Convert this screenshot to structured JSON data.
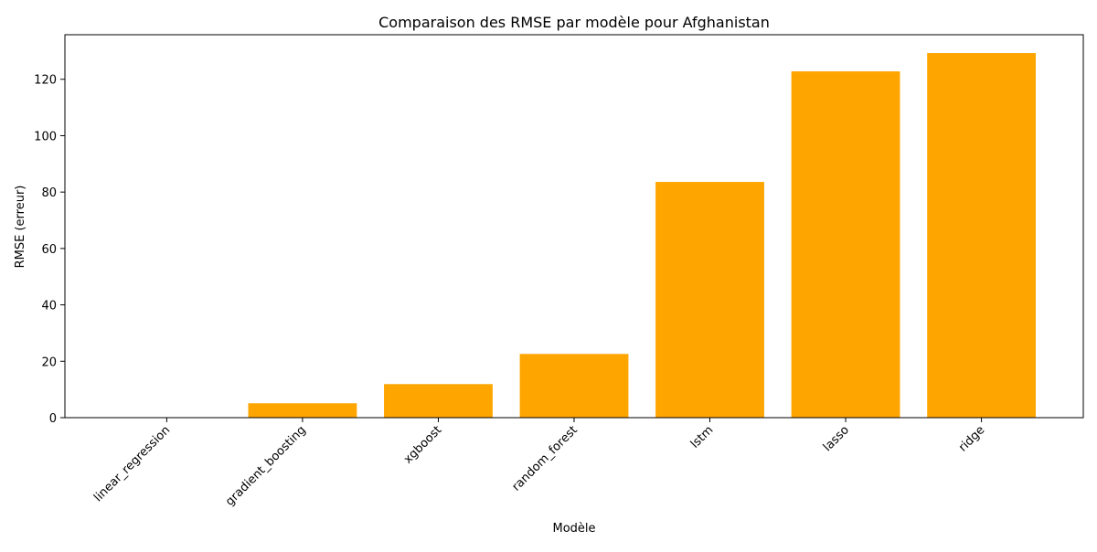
{
  "chart_data": {
    "type": "bar",
    "title": "Comparaison des RMSE par modèle pour Afghanistan",
    "xlabel": "Modèle",
    "ylabel": "RMSE (erreur)",
    "categories": [
      "linear_regression",
      "gradient_boosting",
      "xgboost",
      "random_forest",
      "lstm",
      "lasso",
      "ridge"
    ],
    "values": [
      0.05,
      5.1,
      11.9,
      22.6,
      83.6,
      122.8,
      129.3
    ],
    "ylim": [
      0,
      135.8
    ],
    "yticks": [
      0,
      20,
      40,
      60,
      80,
      100,
      120
    ],
    "bar_color": "#ffa500",
    "grid": false,
    "legend": "none"
  }
}
